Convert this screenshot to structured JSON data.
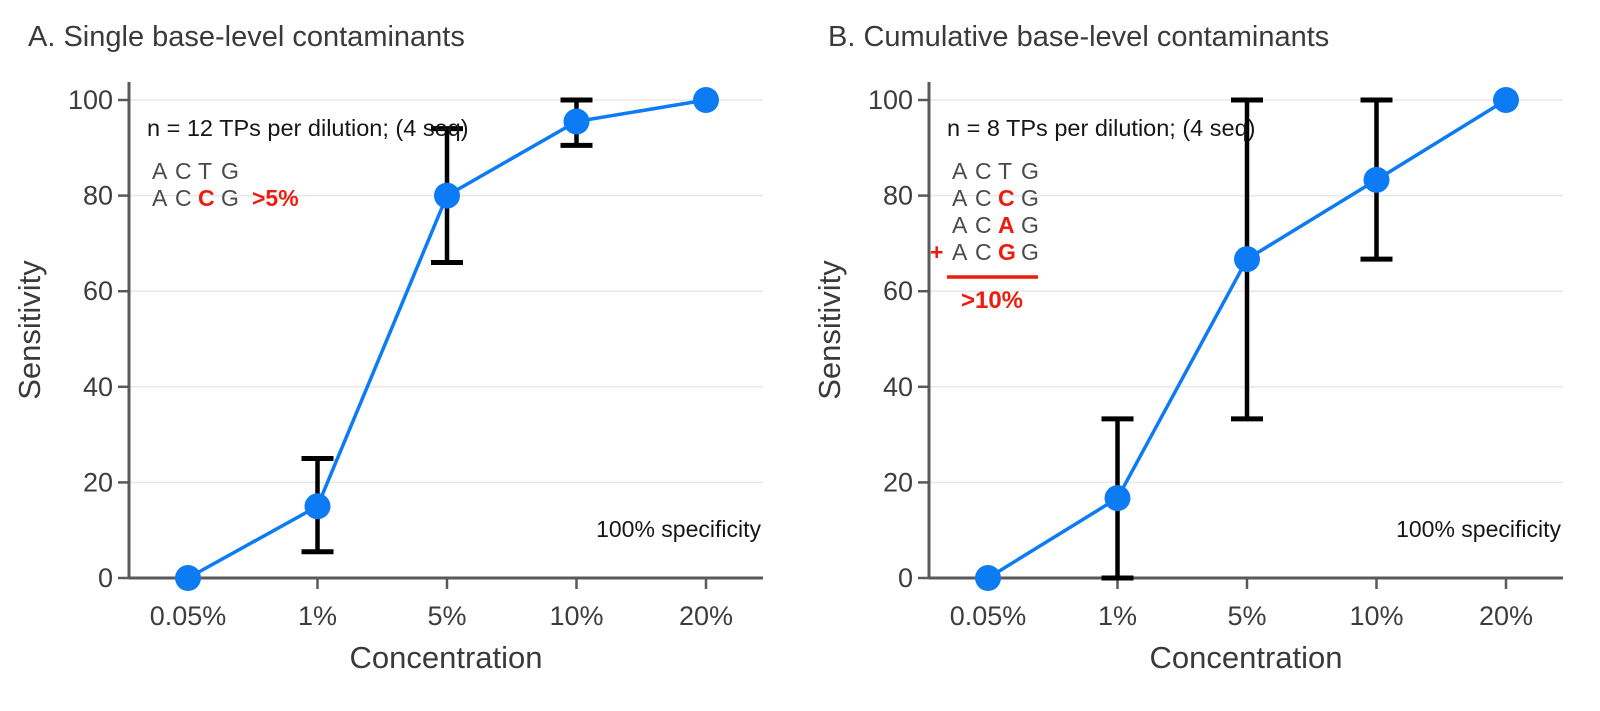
{
  "colors": {
    "accent_blue": "#0D7BF3",
    "error_bar_black": "#000000",
    "highlight_red": "#EE1C0E",
    "grid_gray": "#E8E8E8",
    "axis_gray": "#58595B",
    "tick_text": "#3D3D3D",
    "title_text": "#3A3A3A",
    "annotation_text": "#161616",
    "sequence_gray": "#4A4A4A"
  },
  "chart_data": [
    {
      "type": "line",
      "panel_label": "A",
      "title": "A. Single base-level contaminants",
      "xlabel": "Concentration",
      "ylabel": "Sensitivity",
      "categories": [
        "0.05%",
        "1%",
        "5%",
        "10%",
        "20%"
      ],
      "yticks": [
        0,
        20,
        40,
        60,
        80,
        100
      ],
      "ylim": [
        0,
        104
      ],
      "grid": true,
      "legend": "none",
      "series": [
        {
          "name": "Sensitivity",
          "values": [
            0,
            15,
            80,
            95.5,
            100
          ],
          "err_low": [
            0,
            5.5,
            66,
            90.5,
            100
          ],
          "err_high": [
            0,
            25,
            94,
            100,
            100
          ]
        }
      ],
      "annotations": {
        "n_label": "n = 12 TPs per dilution; (4 seq)",
        "specificity_label": "100% specificity",
        "sequence_lines": [
          {
            "prefix": "",
            "bases": "ACTG",
            "red_indices": [],
            "suffix": ""
          },
          {
            "prefix": "",
            "bases": "ACCG",
            "red_indices": [
              2
            ],
            "suffix": ">5%"
          }
        ],
        "sum_rule": false,
        "threshold_label": ""
      }
    },
    {
      "type": "line",
      "panel_label": "B",
      "title": "B. Cumulative base-level contaminants",
      "xlabel": "Concentration",
      "ylabel": "Sensitivity",
      "categories": [
        "0.05%",
        "1%",
        "5%",
        "10%",
        "20%"
      ],
      "yticks": [
        0,
        20,
        40,
        60,
        80,
        100
      ],
      "ylim": [
        0,
        104
      ],
      "grid": true,
      "legend": "none",
      "series": [
        {
          "name": "Sensitivity",
          "values": [
            0,
            16.7,
            66.7,
            83.3,
            100
          ],
          "err_low": [
            0,
            0,
            33.3,
            66.7,
            100
          ],
          "err_high": [
            0,
            33.3,
            100,
            100,
            100
          ]
        }
      ],
      "annotations": {
        "n_label": "n = 8 TPs per dilution; (4 seq)",
        "specificity_label": "100% specificity",
        "sequence_lines": [
          {
            "prefix": "",
            "bases": "ACTG",
            "red_indices": [],
            "suffix": ""
          },
          {
            "prefix": "",
            "bases": "ACCG",
            "red_indices": [
              2
            ],
            "suffix": ""
          },
          {
            "prefix": "",
            "bases": "ACAG",
            "red_indices": [
              2
            ],
            "suffix": ""
          },
          {
            "prefix": "+",
            "bases": "ACGG",
            "red_indices": [
              2
            ],
            "suffix": ""
          }
        ],
        "sum_rule": true,
        "threshold_label": ">10%"
      }
    }
  ]
}
